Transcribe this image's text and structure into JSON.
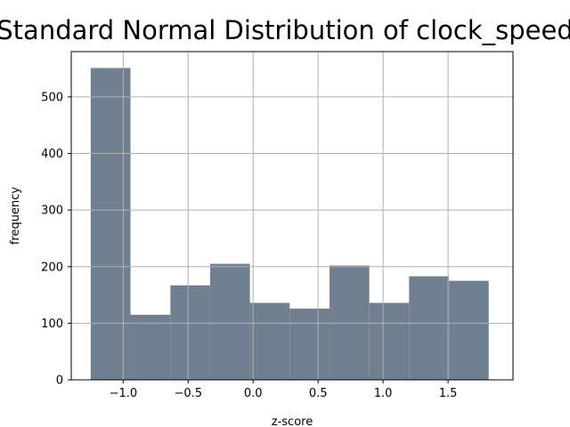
{
  "chart_data": {
    "type": "bar",
    "title": "Standard Normal Distribution of clock_speed",
    "xlabel": "z-score",
    "ylabel": "frequency",
    "xlim": [
      -1.4,
      2.0
    ],
    "ylim": [
      0,
      580
    ],
    "xticks": [
      -1.0,
      -0.5,
      0.0,
      0.5,
      1.0,
      1.5
    ],
    "xtick_labels": [
      "−1.0",
      "−0.5",
      "0.0",
      "0.5",
      "1.0",
      "1.5"
    ],
    "yticks": [
      0,
      100,
      200,
      300,
      400,
      500
    ],
    "ytick_labels": [
      "0",
      "100",
      "200",
      "300",
      "400",
      "500"
    ],
    "grid": true,
    "bin_edges": [
      -1.25,
      -0.944,
      -0.637,
      -0.331,
      -0.025,
      0.281,
      0.588,
      0.894,
      1.2,
      1.507,
      1.813
    ],
    "values": [
      551,
      115,
      167,
      205,
      136,
      126,
      202,
      136,
      183,
      175
    ],
    "bar_color": "#708090"
  }
}
